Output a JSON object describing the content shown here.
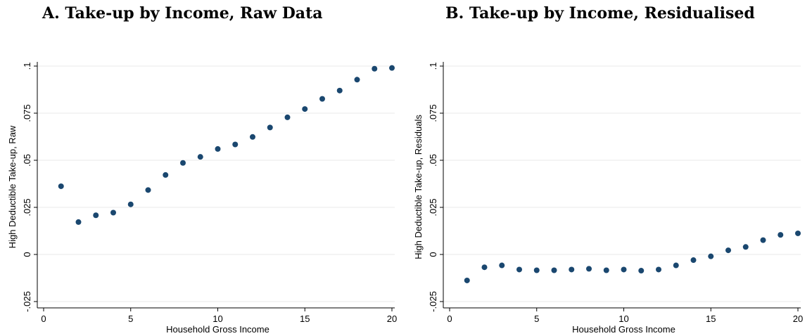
{
  "panels": [
    {
      "title": "A. Take-up by Income, Raw Data"
    },
    {
      "title": "B. Take-up by Income, Residualised"
    }
  ],
  "chart_data": [
    {
      "type": "scatter",
      "title": "A. Take-up by Income, Raw Data",
      "xlabel": "Household Gross Income",
      "ylabel": "High Deductible Take-up, Raw",
      "xlim": [
        0,
        20
      ],
      "ylim": [
        -0.025,
        0.1
      ],
      "xticks": [
        0,
        5,
        10,
        15,
        20
      ],
      "xtick_labels": [
        "0",
        "5",
        "10",
        "15",
        "20"
      ],
      "yticks": [
        -0.025,
        0,
        0.025,
        0.05,
        0.075,
        0.1
      ],
      "ytick_labels": [
        "-.025",
        "0",
        ".025",
        ".05",
        ".075",
        ".1"
      ],
      "grid": "horizontal",
      "marker_color": "#1a476f",
      "x": [
        1,
        2,
        3,
        4,
        5,
        6,
        7,
        8,
        9,
        10,
        11,
        12,
        13,
        14,
        15,
        16,
        17,
        18,
        19,
        20
      ],
      "y": [
        0.0362,
        0.0172,
        0.0208,
        0.0222,
        0.0266,
        0.0342,
        0.0422,
        0.0486,
        0.0518,
        0.056,
        0.0584,
        0.0624,
        0.0674,
        0.0728,
        0.0772,
        0.0826,
        0.087,
        0.0928,
        0.0986,
        0.099
      ]
    },
    {
      "type": "scatter",
      "title": "B. Take-up by Income, Residualised",
      "xlabel": "Household Gross Income",
      "ylabel": "High Deductible Take-up, Residuals",
      "xlim": [
        0,
        20
      ],
      "ylim": [
        -0.025,
        0.1
      ],
      "xticks": [
        0,
        5,
        10,
        15,
        20
      ],
      "xtick_labels": [
        "0",
        "5",
        "10",
        "15",
        "20"
      ],
      "yticks": [
        -0.025,
        0,
        0.025,
        0.05,
        0.075,
        0.1
      ],
      "ytick_labels": [
        "-.025",
        "0",
        ".025",
        ".05",
        ".075",
        ".1"
      ],
      "grid": "horizontal",
      "marker_color": "#1a476f",
      "x": [
        1,
        2,
        3,
        4,
        5,
        6,
        7,
        8,
        9,
        10,
        11,
        12,
        13,
        14,
        15,
        16,
        17,
        18,
        19,
        20
      ],
      "y": [
        -0.0138,
        -0.0068,
        -0.0058,
        -0.008,
        -0.0084,
        -0.0084,
        -0.008,
        -0.0076,
        -0.0084,
        -0.008,
        -0.0086,
        -0.008,
        -0.0058,
        -0.003,
        -0.001,
        0.0022,
        0.004,
        0.0076,
        0.0104,
        0.0112
      ]
    }
  ]
}
